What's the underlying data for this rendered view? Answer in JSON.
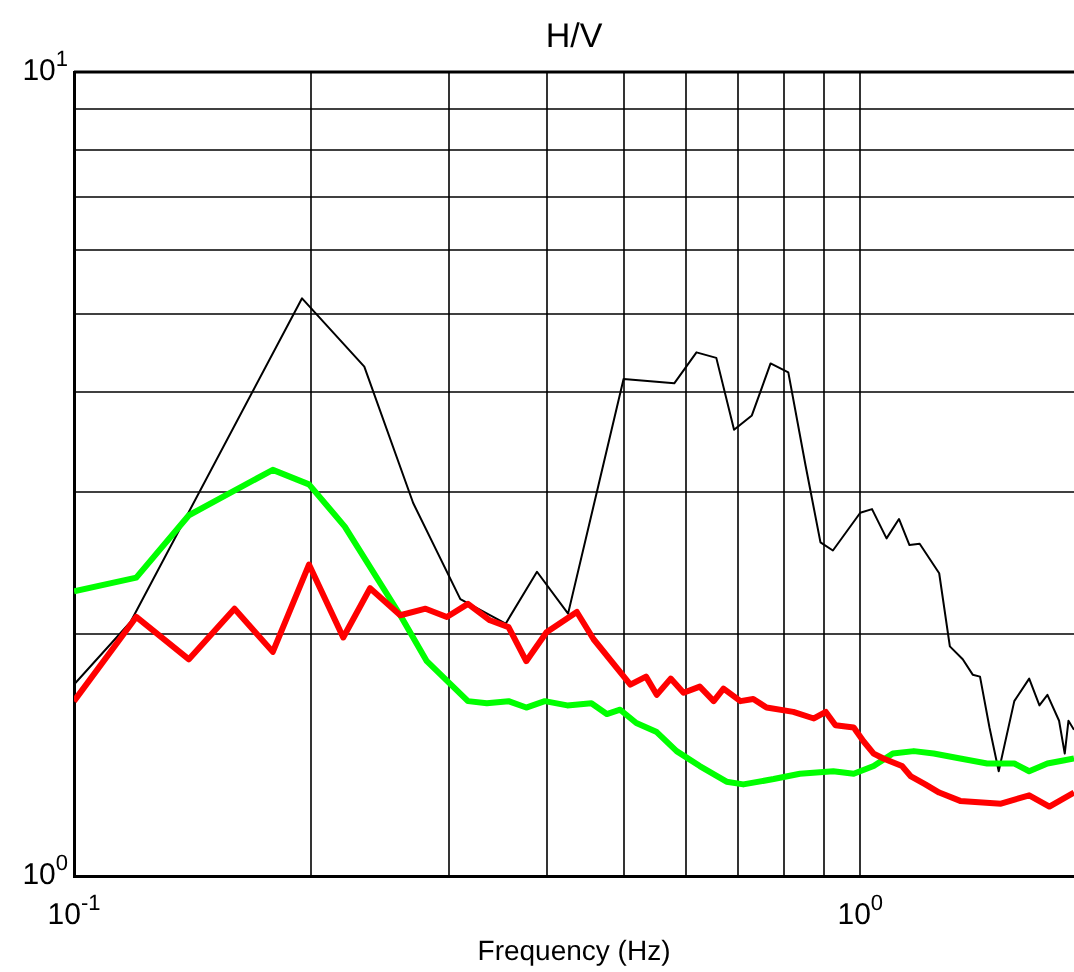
{
  "chart_data": {
    "type": "line",
    "title": "H/V",
    "xlabel": "Frequency (Hz)",
    "log": "xy",
    "grid": true,
    "marker": "none",
    "legend": false,
    "xlim": [
      0.1,
      1.87
    ],
    "ylim": [
      1,
      10
    ],
    "xticks": [
      {
        "value": 0.1,
        "label": "10$^{-1}$"
      },
      {
        "value": 0.2,
        "label": null
      },
      {
        "value": 0.3,
        "label": null
      },
      {
        "value": 0.4,
        "label": null
      },
      {
        "value": 0.5,
        "label": null
      },
      {
        "value": 0.6,
        "label": null
      },
      {
        "value": 0.7,
        "label": null
      },
      {
        "value": 0.8,
        "label": null
      },
      {
        "value": 0.9,
        "label": null
      },
      {
        "value": 1,
        "label": "10$^{0}$"
      }
    ],
    "yticks": [
      {
        "value": 1,
        "label": "10$^{0}$"
      },
      {
        "value": 2,
        "label": null
      },
      {
        "value": 3,
        "label": null
      },
      {
        "value": 4,
        "label": null
      },
      {
        "value": 5,
        "label": null
      },
      {
        "value": 6,
        "label": null
      },
      {
        "value": 7,
        "label": null
      },
      {
        "value": 8,
        "label": null
      },
      {
        "value": 9,
        "label": null
      },
      {
        "value": 10,
        "label": "10$^{1}$"
      }
    ],
    "series": [
      {
        "color": "#000000",
        "x": [
          0.1,
          0.118,
          0.195,
          0.234,
          0.27,
          0.31,
          0.354,
          0.388,
          0.425,
          0.5,
          0.58,
          0.619,
          0.656,
          0.691,
          0.728,
          0.769,
          0.81,
          0.852,
          0.89,
          0.923,
          1.0,
          1.035,
          1.08,
          1.12,
          1.155,
          1.19,
          1.26,
          1.3,
          1.35,
          1.39,
          1.42,
          1.46,
          1.5,
          1.57,
          1.64,
          1.69,
          1.73,
          1.79,
          1.82,
          1.84,
          1.87
        ],
        "values": [
          1.73,
          2.07,
          5.23,
          4.3,
          2.91,
          2.21,
          2.06,
          2.39,
          2.12,
          4.15,
          4.1,
          4.48,
          4.41,
          3.59,
          3.74,
          4.34,
          4.23,
          3.24,
          2.6,
          2.54,
          2.83,
          2.86,
          2.63,
          2.78,
          2.58,
          2.59,
          2.38,
          1.93,
          1.86,
          1.78,
          1.77,
          1.53,
          1.35,
          1.65,
          1.76,
          1.63,
          1.68,
          1.56,
          1.42,
          1.56,
          1.52
        ]
      },
      {
        "color": "#00ff00",
        "x": [
          0.1,
          0.12,
          0.14,
          0.179,
          0.199,
          0.221,
          0.26,
          0.281,
          0.317,
          0.335,
          0.357,
          0.376,
          0.397,
          0.424,
          0.455,
          0.476,
          0.495,
          0.519,
          0.551,
          0.584,
          0.625,
          0.676,
          0.71,
          0.776,
          0.838,
          0.924,
          0.981,
          1.04,
          1.1,
          1.17,
          1.24,
          1.34,
          1.45,
          1.57,
          1.64,
          1.73,
          1.87
        ],
        "values": [
          2.26,
          2.35,
          2.81,
          3.2,
          3.07,
          2.72,
          2.11,
          1.85,
          1.65,
          1.64,
          1.65,
          1.62,
          1.65,
          1.63,
          1.64,
          1.59,
          1.61,
          1.55,
          1.51,
          1.43,
          1.37,
          1.31,
          1.3,
          1.32,
          1.34,
          1.35,
          1.34,
          1.37,
          1.42,
          1.43,
          1.42,
          1.4,
          1.38,
          1.38,
          1.35,
          1.38,
          1.4
        ]
      },
      {
        "color": "#ff0000",
        "x": [
          0.1,
          0.12,
          0.14,
          0.16,
          0.179,
          0.199,
          0.22,
          0.238,
          0.26,
          0.28,
          0.298,
          0.317,
          0.338,
          0.357,
          0.376,
          0.399,
          0.436,
          0.458,
          0.51,
          0.534,
          0.551,
          0.574,
          0.596,
          0.625,
          0.651,
          0.67,
          0.704,
          0.731,
          0.76,
          0.822,
          0.873,
          0.904,
          0.93,
          0.981,
          1.01,
          1.04,
          1.07,
          1.13,
          1.16,
          1.21,
          1.26,
          1.34,
          1.51,
          1.64,
          1.74,
          1.87
        ],
        "values": [
          1.65,
          2.1,
          1.86,
          2.15,
          1.9,
          2.44,
          1.98,
          2.28,
          2.11,
          2.15,
          2.1,
          2.18,
          2.08,
          2.04,
          1.85,
          2.01,
          2.13,
          1.97,
          1.73,
          1.77,
          1.68,
          1.76,
          1.69,
          1.72,
          1.65,
          1.71,
          1.65,
          1.66,
          1.62,
          1.6,
          1.57,
          1.6,
          1.54,
          1.53,
          1.47,
          1.42,
          1.4,
          1.37,
          1.33,
          1.3,
          1.27,
          1.24,
          1.23,
          1.26,
          1.22,
          1.27
        ]
      }
    ]
  }
}
